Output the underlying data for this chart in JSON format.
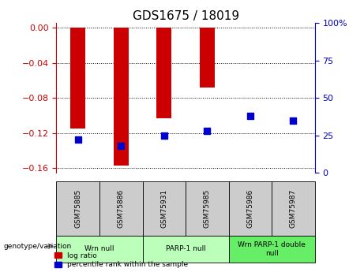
{
  "title": "GDS1675 / 18019",
  "samples": [
    "GSM75885",
    "GSM75886",
    "GSM75931",
    "GSM75985",
    "GSM75986",
    "GSM75987"
  ],
  "log_ratios": [
    -0.115,
    -0.157,
    -0.103,
    -0.068,
    0.0,
    0.0
  ],
  "pct_rank_values": [
    22,
    18,
    25,
    28,
    38,
    35
  ],
  "ylim_left": [
    -0.165,
    0.005
  ],
  "ylim_right": [
    0,
    100
  ],
  "yticks_left": [
    0,
    -0.04,
    -0.08,
    -0.12,
    -0.16
  ],
  "yticks_right": [
    0,
    25,
    50,
    75,
    100
  ],
  "groups": [
    {
      "label": "Wrn null",
      "start": 0,
      "end": 2,
      "color": "#bbffbb"
    },
    {
      "label": "PARP-1 null",
      "start": 2,
      "end": 4,
      "color": "#bbffbb"
    },
    {
      "label": "Wrn PARP-1 double\nnull",
      "start": 4,
      "end": 6,
      "color": "#66ee66"
    }
  ],
  "bar_color": "#cc0000",
  "dot_color": "#0000cc",
  "left_axis_color": "#cc0000",
  "right_axis_color": "#0000cc",
  "sample_cell_color": "#cccccc",
  "bar_width": 0.35,
  "dot_size": 40
}
